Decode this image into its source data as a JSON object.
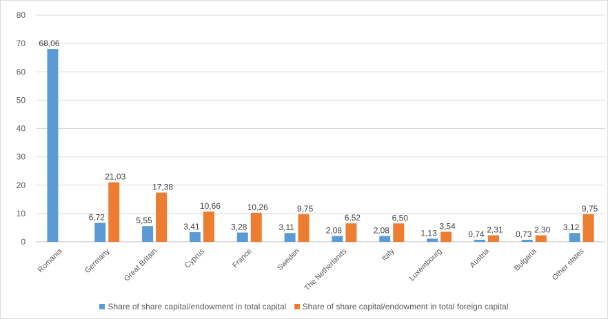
{
  "chart_data": {
    "type": "bar",
    "categories": [
      "Romania",
      "Germany",
      "Great Britain",
      "Cyprus",
      "France",
      "Sweden",
      "The Netherlands",
      "Italy",
      "Luxembourg",
      "Austria",
      "Bulgaria",
      "Other states"
    ],
    "series": [
      {
        "name": "Share of share capital/endowment in total capital",
        "color": "#5b9bd5",
        "values": [
          68.06,
          6.72,
          5.55,
          3.41,
          3.28,
          3.11,
          2.08,
          2.08,
          1.13,
          0.74,
          0.73,
          3.12
        ],
        "labels": [
          "68,06",
          "6,72",
          "5,55",
          "3,41",
          "3,28",
          "3,11",
          "2,08",
          "2,08",
          "1,13",
          "0,74",
          "0,73",
          "3,12"
        ]
      },
      {
        "name": "Share of share capital/endowment in total foreign capital",
        "color": "#ed7d31",
        "values": [
          null,
          21.03,
          17.38,
          10.66,
          10.26,
          9.75,
          6.52,
          6.5,
          3.54,
          2.31,
          2.3,
          9.75
        ],
        "labels": [
          "",
          "21,03",
          "17,38",
          "10,66",
          "10,26",
          "9,75",
          "6,52",
          "6,50",
          "3,54",
          "2,31",
          "2,30",
          "9,75"
        ]
      }
    ],
    "ylim": [
      0,
      80
    ],
    "yticks": [
      "0",
      "10",
      "20",
      "30",
      "40",
      "50",
      "60",
      "70",
      "80"
    ],
    "grid": true,
    "legend": "bottom",
    "title": "",
    "xlabel": "",
    "ylabel": ""
  }
}
